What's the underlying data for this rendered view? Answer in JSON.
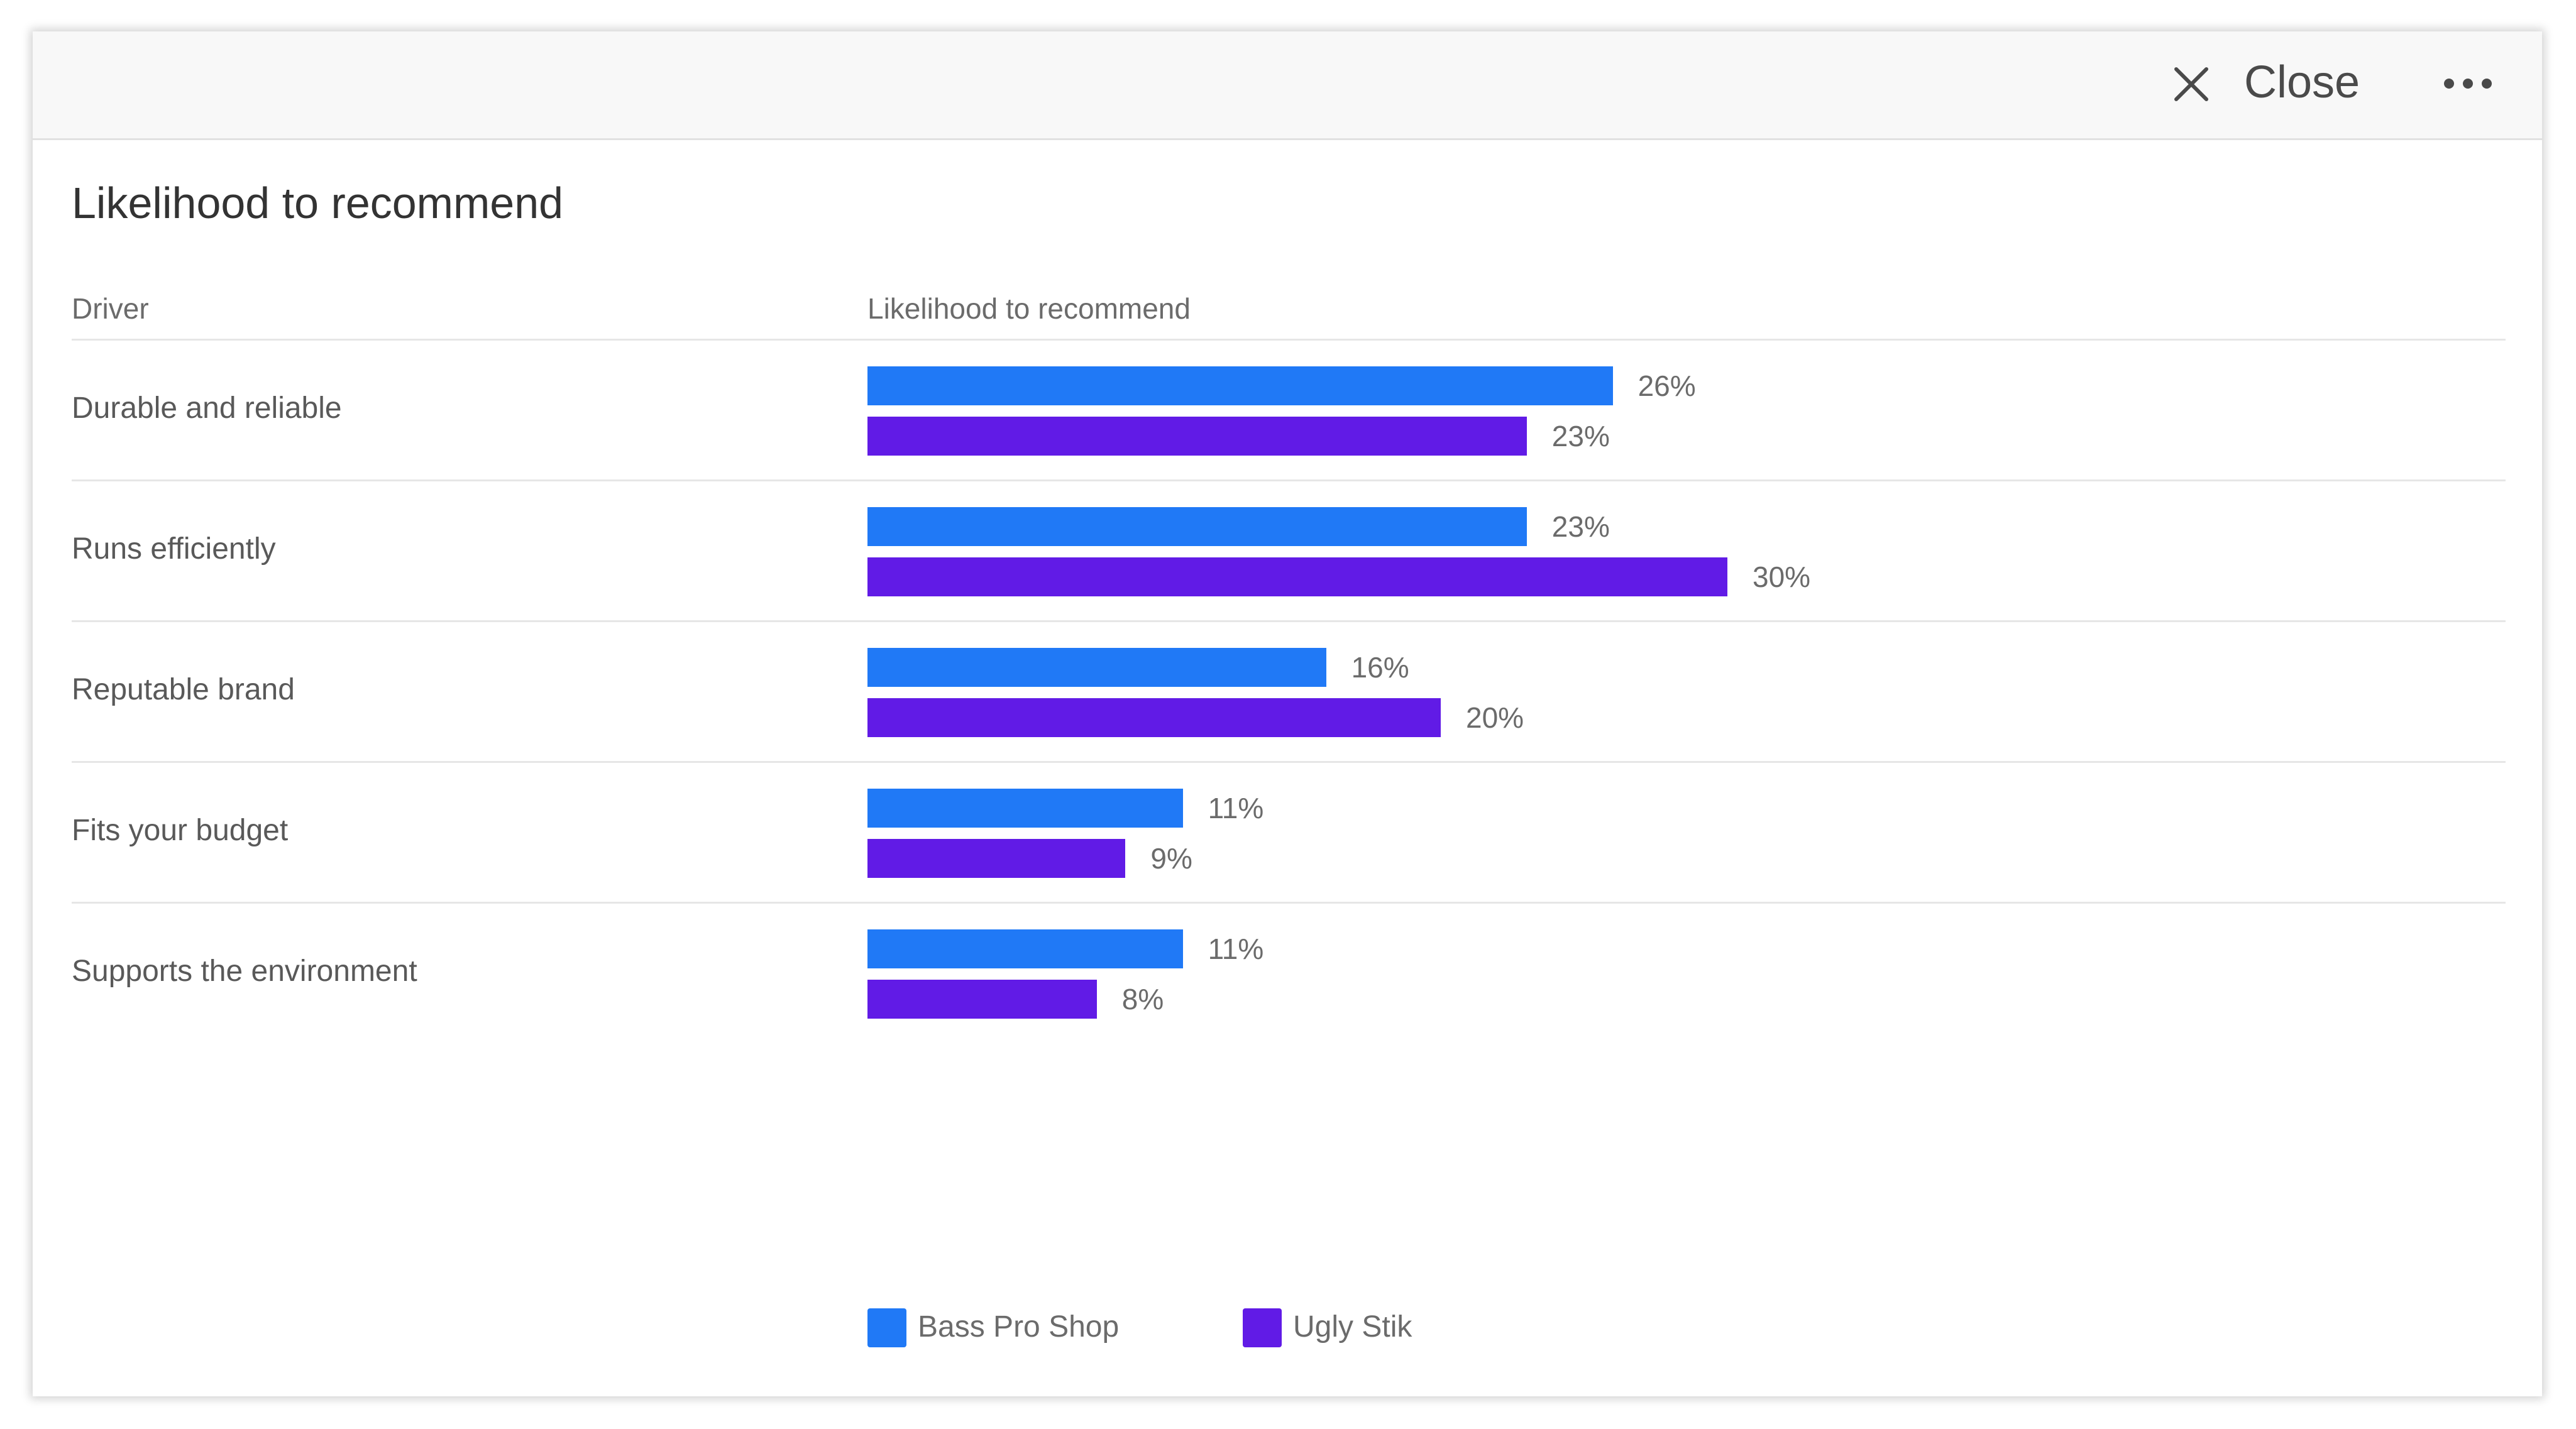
{
  "header": {
    "close_label": "Close",
    "close_icon": "close-icon",
    "more_icon": "more-horizontal-icon"
  },
  "title": "Likelihood to recommend",
  "table": {
    "col_driver": "Driver",
    "col_metric": "Likelihood to recommend"
  },
  "colors": {
    "series_1": "#2079f6",
    "series_2": "#611be6"
  },
  "chart_data": {
    "type": "bar",
    "orientation": "horizontal",
    "title": "Likelihood to recommend",
    "categories": [
      "Durable and reliable",
      "Runs efficiently",
      "Reputable brand",
      "Fits your budget",
      "Supports the environment"
    ],
    "series": [
      {
        "name": "Bass Pro Shop",
        "values": [
          26,
          23,
          16,
          11,
          11
        ],
        "labels": [
          "26%",
          "23%",
          "16%",
          "11%",
          "11%"
        ]
      },
      {
        "name": "Ugly Stik",
        "values": [
          23,
          30,
          20,
          9,
          8
        ],
        "labels": [
          "23%",
          "30%",
          "20%",
          "9%",
          "8%"
        ]
      }
    ],
    "unit": "%",
    "xlabel": "",
    "ylabel": "",
    "legend_position": "bottom"
  }
}
